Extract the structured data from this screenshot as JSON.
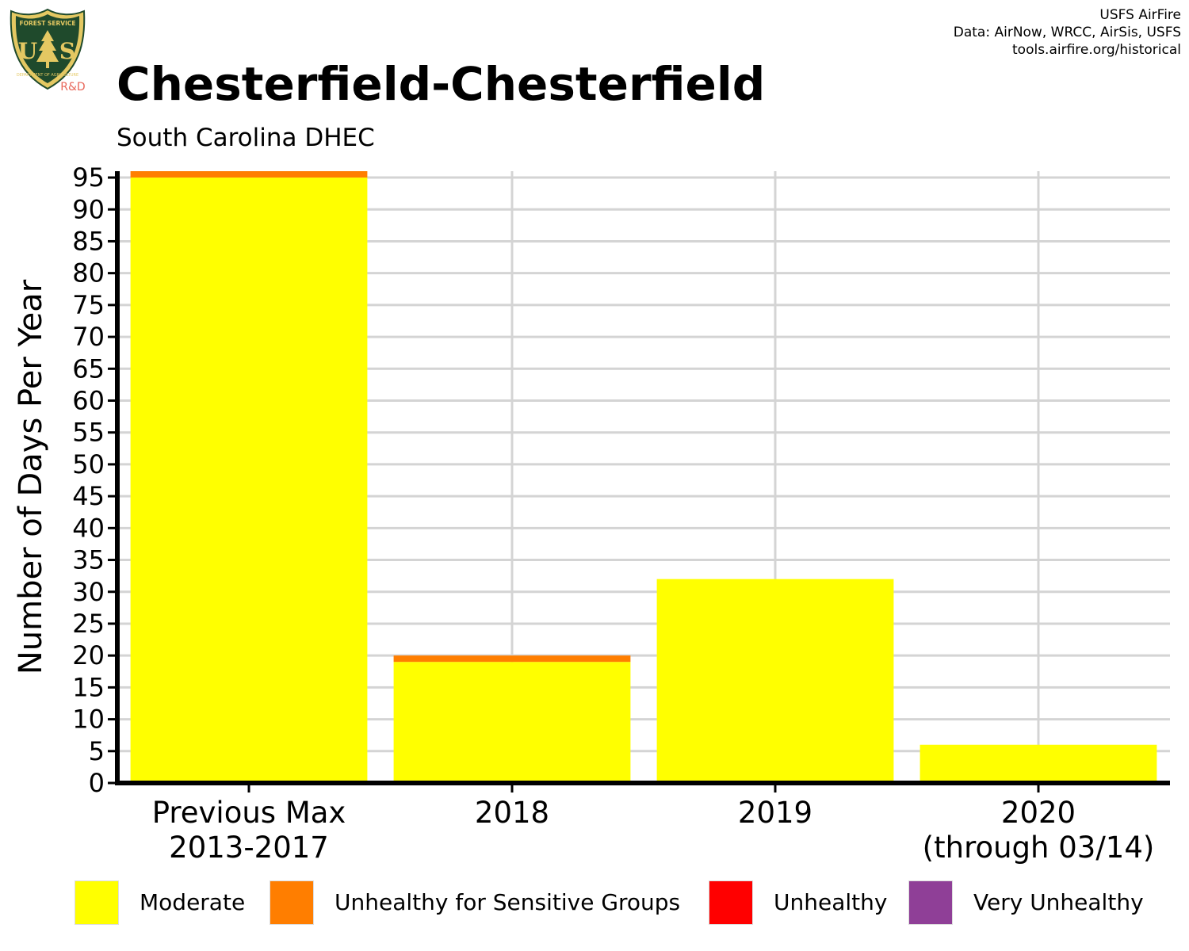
{
  "header": {
    "title": "Chesterfield-Chesterfield",
    "subtitle": "South Carolina DHEC",
    "credits": [
      "USFS AirFire",
      "Data: AirNow, WRCC, AirSis, USFS",
      "tools.airfire.org/historical"
    ]
  },
  "logo": {
    "icon": "usfs-shield-logo",
    "top_text": "FOREST SERVICE",
    "bottom_text": "DEPARTMENT OF AGRICULTURE",
    "left_letter": "U",
    "right_letter": "S",
    "badge": "R&D",
    "colors": {
      "shield": "#1f4a2c",
      "gold": "#e4c862",
      "badge": "#e8675a"
    }
  },
  "chart_data": {
    "type": "bar",
    "stacked": true,
    "categories": [
      [
        "Previous Max",
        "2013-2017"
      ],
      [
        "2018"
      ],
      [
        "2019"
      ],
      [
        "2020",
        "(through 03/14)"
      ]
    ],
    "series": [
      {
        "name": "Moderate",
        "color": "#ffff00",
        "values": [
          95,
          19,
          32,
          6
        ]
      },
      {
        "name": "Unhealthy for Sensitive Groups",
        "color": "#ff7e00",
        "values": [
          1,
          1,
          0,
          0
        ]
      },
      {
        "name": "Unhealthy",
        "color": "#ff0000",
        "values": [
          0,
          0,
          0,
          0
        ]
      },
      {
        "name": "Very Unhealthy",
        "color": "#8f3f97",
        "values": [
          0,
          0,
          0,
          0
        ]
      }
    ],
    "ylabel": "Number of Days Per Year",
    "xlabel": "",
    "ylim": [
      0,
      96
    ],
    "yticks": [
      0,
      5,
      10,
      15,
      20,
      25,
      30,
      35,
      40,
      45,
      50,
      55,
      60,
      65,
      70,
      75,
      80,
      85,
      90,
      95
    ],
    "grid": true,
    "legend_position": "bottom"
  }
}
